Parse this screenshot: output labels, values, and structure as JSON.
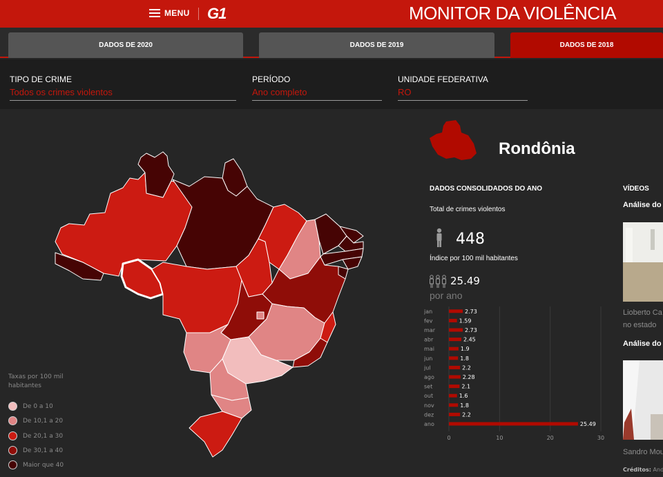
{
  "header": {
    "menu_label": "MENU",
    "logo_text": "G1",
    "site_title": "MONITOR DA VIOLÊNCIA",
    "brand_color": "#c4170c"
  },
  "tabs": [
    {
      "label": "DADOS DE 2020",
      "active": false
    },
    {
      "label": "DADOS DE 2019",
      "active": false
    },
    {
      "label": "DADOS DE 2018",
      "active": true
    }
  ],
  "filters": {
    "crime_type": {
      "label": "TIPO DE CRIME",
      "value": "Todos os crimes violentos"
    },
    "period": {
      "label": "PERÍODO",
      "value": "Ano completo"
    },
    "state": {
      "label": "UNIDADE FEDERATIVA",
      "value": "RO"
    }
  },
  "legend": {
    "title": "Taxas por 100 mil habitantes",
    "items": [
      {
        "label": "De 0 a 10",
        "color": "#f2bdbd"
      },
      {
        "label": "De 10,1 a 20",
        "color": "#e08585"
      },
      {
        "label": "De 20,1 a 30",
        "color": "#cc1b12"
      },
      {
        "label": "De 30,1 a 40",
        "color": "#8f0d08"
      },
      {
        "label": "Maior que 40",
        "color": "#460404"
      }
    ]
  },
  "selected_state": {
    "name": "Rondônia",
    "consolidated_title": "DADOS CONSOLIDADOS DO ANO",
    "total_label": "Total de crimes violentos",
    "total_value": "448",
    "index_label": "Índice por 100 mil habitantes",
    "index_value": "25.49",
    "per_year_label": "por ano",
    "person_icon": "person-icon",
    "group_icon": "people-group-icon"
  },
  "chart_data": {
    "type": "bar",
    "orientation": "horizontal",
    "categories": [
      "jan",
      "fev",
      "mar",
      "abr",
      "mai",
      "jun",
      "jul",
      "ago",
      "set",
      "out",
      "nov",
      "dez",
      "ano"
    ],
    "values": [
      2.73,
      1.59,
      2.73,
      2.45,
      1.9,
      1.8,
      2.2,
      2.28,
      2.1,
      1.6,
      1.8,
      2.2,
      25.49
    ],
    "value_labels": [
      "2.73",
      "1.59",
      "2.73",
      "2.45",
      "1.9",
      "1.8",
      "2.2",
      "2.28",
      "2.1",
      "1.6",
      "1.8",
      "2.2",
      "25.49"
    ],
    "xlim": [
      0,
      30
    ],
    "x_ticks": [
      "0",
      "10",
      "20",
      "30"
    ],
    "grid": true,
    "bar_color": "#b10a00"
  },
  "videos": {
    "title": "VÍDEOS",
    "items": [
      {
        "heading": "Análise do g",
        "caption_line1": "Lioberto Ca",
        "caption_line2": "no estado"
      },
      {
        "heading": "Análise do e",
        "caption_line1": "Sandro Mou",
        "caption_line2": ""
      }
    ],
    "credits_label": "Créditos:",
    "credits_text": "Andr"
  }
}
